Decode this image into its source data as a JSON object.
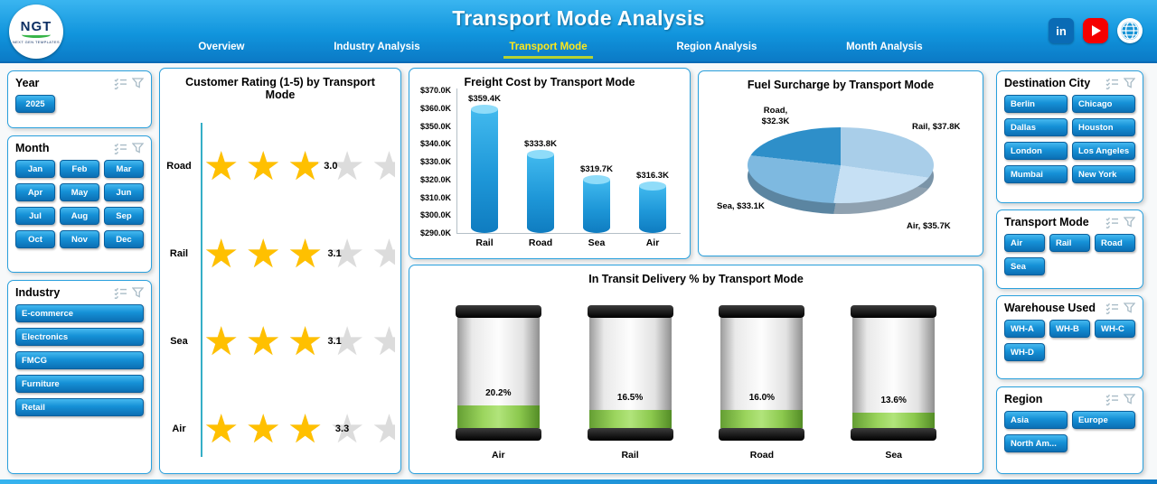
{
  "header": {
    "title": "Transport Mode Analysis",
    "logo": {
      "text": "NGT",
      "subtext": "NEXT GEN TEMPLATES"
    },
    "nav": [
      {
        "label": "Overview",
        "active": false
      },
      {
        "label": "Industry Analysis",
        "active": false
      },
      {
        "label": "Transport Mode",
        "active": true
      },
      {
        "label": "Region Analysis",
        "active": false
      },
      {
        "label": "Month Analysis",
        "active": false
      }
    ],
    "social": [
      "linkedin",
      "youtube",
      "globe"
    ]
  },
  "colors": {
    "header_blue": "#1195dd",
    "button_blue": "#1590d6",
    "active_tab_yellow": "#ffe81a",
    "star_gold": "#ffc000",
    "star_empty": "#dcdcdc",
    "bar_blue": "#1e97d8",
    "gauge_green": "#92d050"
  },
  "filters": {
    "left": [
      {
        "id": "year",
        "title": "Year",
        "options": [
          "2025"
        ]
      },
      {
        "id": "month",
        "title": "Month",
        "options": [
          "Jan",
          "Feb",
          "Mar",
          "Apr",
          "May",
          "Jun",
          "Jul",
          "Aug",
          "Sep",
          "Oct",
          "Nov",
          "Dec"
        ]
      },
      {
        "id": "industry",
        "title": "Industry",
        "options": [
          "E-commerce",
          "Electronics",
          "FMCG",
          "Furniture",
          "Retail"
        ]
      }
    ],
    "right": [
      {
        "id": "destination-city",
        "title": "Destination City",
        "options": [
          "Berlin",
          "Chicago",
          "Dallas",
          "Houston",
          "London",
          "Los Angeles",
          "Mumbai",
          "New York"
        ]
      },
      {
        "id": "transport-mode",
        "title": "Transport Mode",
        "options": [
          "Air",
          "Rail",
          "Road",
          "Sea"
        ]
      },
      {
        "id": "warehouse-used",
        "title": "Warehouse Used",
        "options": [
          "WH-A",
          "WH-B",
          "WH-C",
          "WH-D"
        ]
      },
      {
        "id": "region",
        "title": "Region",
        "options": [
          "Asia",
          "Europe",
          "North Am..."
        ]
      }
    ]
  },
  "chart_data": [
    {
      "type": "rating",
      "title": "Customer Rating (1-5) by Transport Mode",
      "categories": [
        "Road",
        "Rail",
        "Sea",
        "Air"
      ],
      "values": [
        3.0,
        3.1,
        3.1,
        3.3
      ],
      "labels": [
        "3.0",
        "3.1",
        "3.1",
        "3.3"
      ],
      "max": 5
    },
    {
      "type": "bar",
      "title": "Freight Cost by Transport Mode",
      "categories": [
        "Rail",
        "Road",
        "Sea",
        "Air"
      ],
      "values": [
        359.4,
        333.8,
        319.7,
        316.3
      ],
      "labels": [
        "$359.4K",
        "$333.8K",
        "$319.7K",
        "$316.3K"
      ],
      "ylabel": "",
      "xlabel": "",
      "ylim": [
        290,
        370
      ],
      "yticks": [
        "$370.0K",
        "$360.0K",
        "$350.0K",
        "$340.0K",
        "$330.0K",
        "$320.0K",
        "$310.0K",
        "$300.0K",
        "$290.0K"
      ]
    },
    {
      "type": "pie",
      "title": "Fuel Surcharge by Transport Mode",
      "slices": [
        {
          "name": "Rail",
          "value": 37.8,
          "label": "Rail, $37.8K",
          "color": "#a9cee9"
        },
        {
          "name": "Air",
          "value": 35.7,
          "label": "Air, $35.7K",
          "color": "#c6e0f4"
        },
        {
          "name": "Sea",
          "value": 33.1,
          "label": "Sea, $33.1K",
          "color": "#7eb9e0"
        },
        {
          "name": "Road",
          "value": 32.3,
          "label": "Road, $32.3K",
          "color": "#2e8fc9"
        }
      ]
    },
    {
      "type": "gauge",
      "title": "In Transit Delivery % by Transport Mode",
      "categories": [
        "Air",
        "Rail",
        "Road",
        "Sea"
      ],
      "values": [
        20.2,
        16.5,
        16.0,
        13.6
      ],
      "labels": [
        "20.2%",
        "16.5%",
        "16.0%",
        "13.6%"
      ],
      "ylim": [
        0,
        100
      ]
    }
  ]
}
